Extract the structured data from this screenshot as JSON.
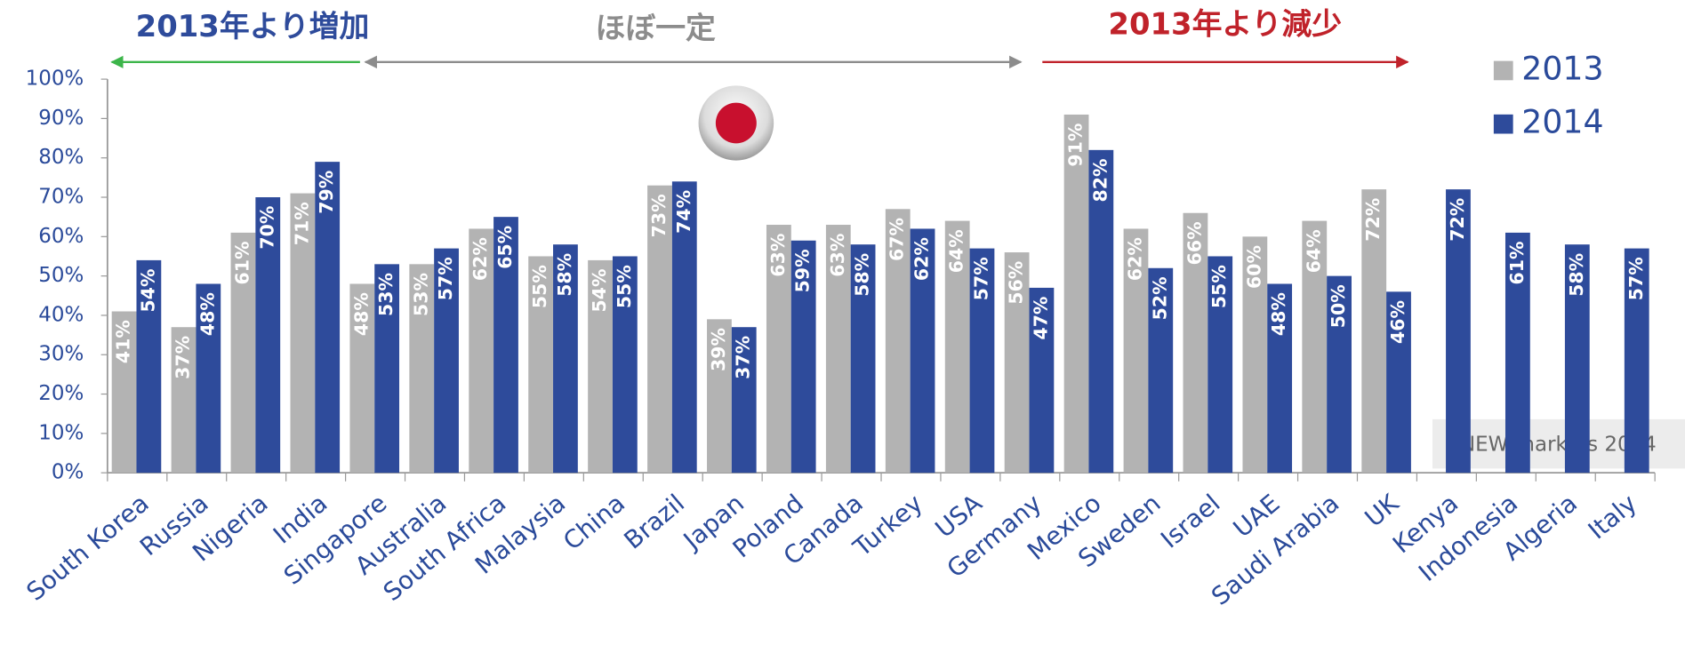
{
  "chart_data": {
    "type": "bar",
    "annotations": [
      "2013年より増加",
      "ほぼ一定",
      "2013年より減少",
      "NEW markets 2014"
    ],
    "categories": [
      "South Korea",
      "Russia",
      "Nigeria",
      "India",
      "Singapore",
      "Australia",
      "South Africa",
      "Malaysia",
      "China",
      "Brazil",
      "Japan",
      "Poland",
      "Canada",
      "Turkey",
      "USA",
      "Germany",
      "Mexico",
      "Sweden",
      "Israel",
      "UAE",
      "Saudi Arabia",
      "UK",
      "Kenya",
      "Indonesia",
      "Algeria",
      "Italy"
    ],
    "series": [
      {
        "name": "2013",
        "color": "#b3b3b3",
        "values": [
          41,
          37,
          61,
          71,
          48,
          53,
          62,
          55,
          54,
          73,
          39,
          63,
          63,
          67,
          64,
          56,
          91,
          62,
          66,
          60,
          64,
          72,
          null,
          null,
          null,
          null
        ],
        "value_labels": [
          "41%",
          "37%",
          "61%",
          "71%",
          "48%",
          "53%",
          "62%",
          "55%",
          "54%",
          "73%",
          "39%",
          "63%",
          "63%",
          "67%",
          "64%",
          "56%",
          "91%",
          "62%",
          "66%",
          "60%",
          "64%",
          "72%",
          null,
          null,
          null,
          null
        ]
      },
      {
        "name": "2014",
        "color": "#2e4b9b",
        "values": [
          54,
          48,
          70,
          79,
          53,
          57,
          65,
          58,
          55,
          74,
          37,
          59,
          58,
          62,
          57,
          47,
          82,
          52,
          55,
          48,
          50,
          46,
          72,
          61,
          58,
          57
        ],
        "value_labels": [
          "54%",
          "48%",
          "70%",
          "79%",
          "53%",
          "57%",
          "65%",
          "58%",
          "55%",
          "74%",
          "37%",
          "59%",
          "58%",
          "62%",
          "57%",
          "47%",
          "82%",
          "52%",
          "55%",
          "48%",
          "50%",
          "46%",
          "72%",
          "61%",
          "58%",
          "57%"
        ]
      }
    ],
    "ylim": [
      0,
      100
    ],
    "yticks": [
      {
        "value": 0,
        "label": "0%"
      },
      {
        "value": 10,
        "label": "10%"
      },
      {
        "value": 20,
        "label": "20%"
      },
      {
        "value": 30,
        "label": "30%"
      },
      {
        "value": 40,
        "label": "40%"
      },
      {
        "value": 50,
        "label": "50%"
      },
      {
        "value": 60,
        "label": "60%"
      },
      {
        "value": 70,
        "label": "70%"
      },
      {
        "value": 80,
        "label": "80%"
      },
      {
        "value": 90,
        "label": "90%"
      },
      {
        "value": 100,
        "label": "100%"
      }
    ],
    "grid": false
  }
}
